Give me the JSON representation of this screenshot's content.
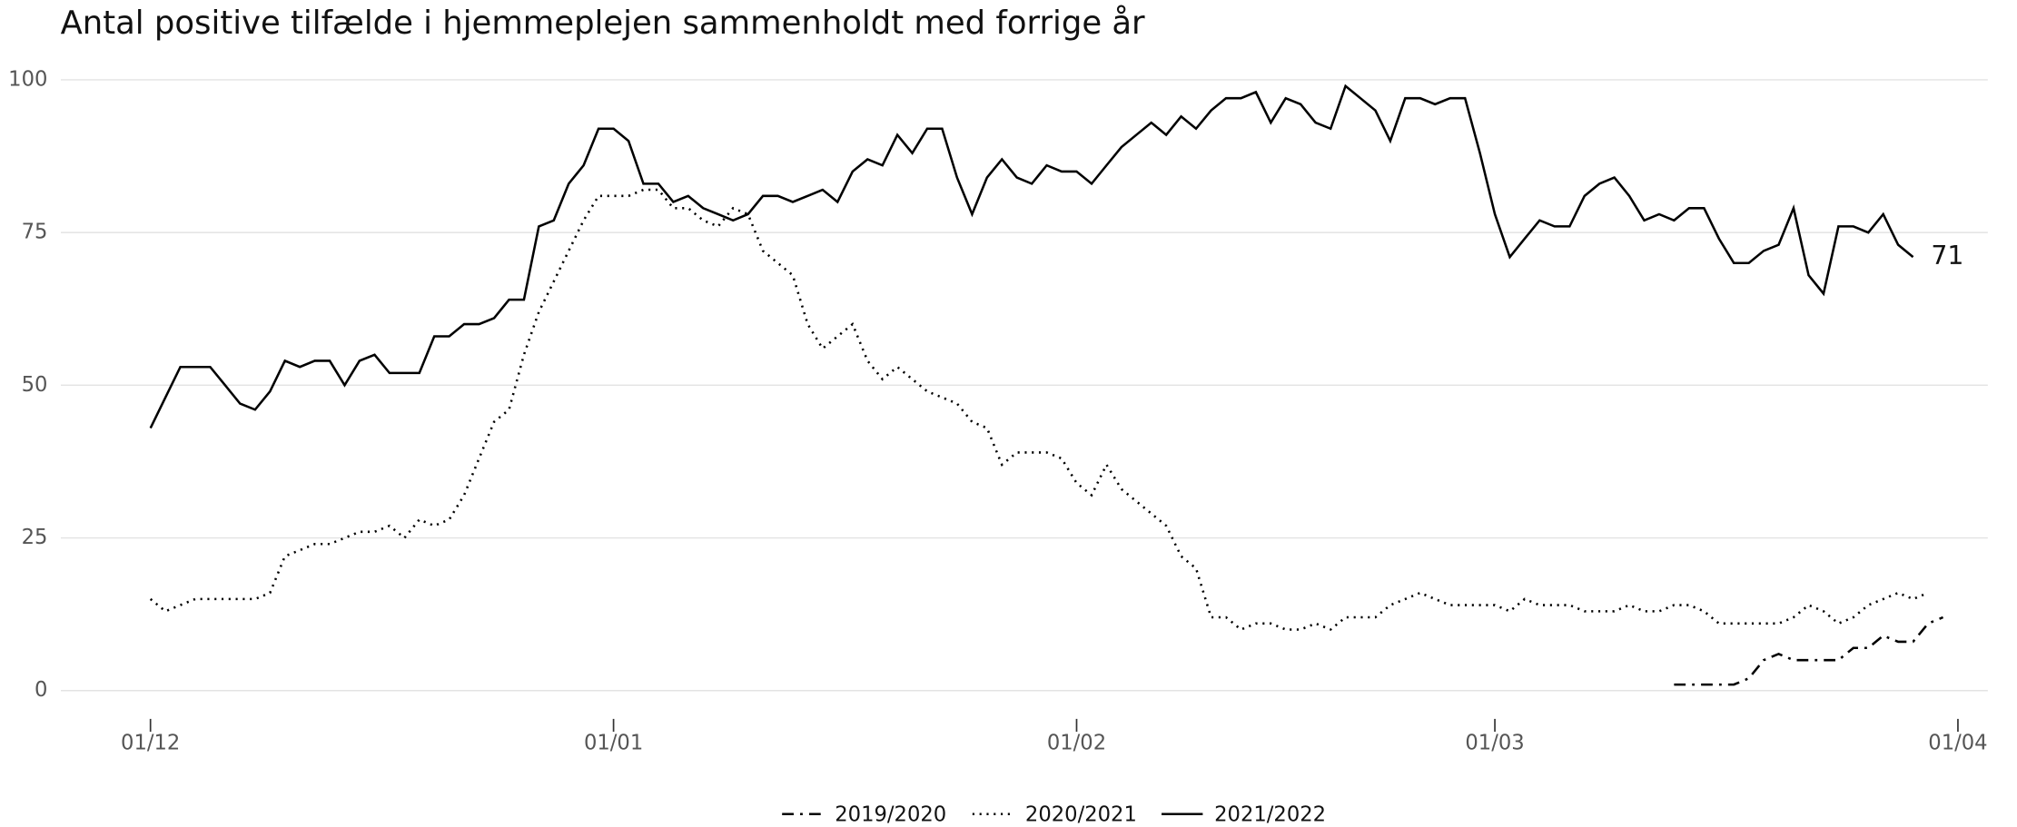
{
  "chart_data": {
    "type": "line",
    "title": "Antal positive tilfælde i hjemmeplejen sammenholdt med forrige år",
    "x": [
      0,
      1,
      2,
      3,
      4,
      5,
      6,
      7,
      8,
      9,
      10,
      11,
      12,
      13,
      14,
      15,
      16,
      17,
      18,
      19,
      20,
      21,
      22,
      23,
      24,
      25,
      26,
      27,
      28,
      29,
      30,
      31,
      32,
      33,
      34,
      35,
      36,
      37,
      38,
      39,
      40,
      41,
      42,
      43,
      44,
      45,
      46,
      47,
      48,
      49,
      50,
      51,
      52,
      53,
      54,
      55,
      56,
      57,
      58,
      59,
      60,
      61,
      62,
      63,
      64,
      65,
      66,
      67,
      68,
      69,
      70,
      71,
      72,
      73,
      74,
      75,
      76,
      77,
      78,
      79,
      80,
      81,
      82,
      83,
      84,
      85,
      86,
      87,
      88,
      89,
      90,
      91,
      92,
      93,
      94,
      95,
      96,
      97,
      98,
      99,
      100,
      101,
      102,
      103,
      104,
      105,
      106,
      107,
      108,
      109,
      110,
      111,
      112,
      113,
      114,
      115,
      116,
      117,
      118,
      119,
      120
    ],
    "xlim": [
      -6,
      123
    ],
    "xticks": [
      {
        "value": 0,
        "label": "01/12"
      },
      {
        "value": 31,
        "label": "01/01"
      },
      {
        "value": 62,
        "label": "01/02"
      },
      {
        "value": 90,
        "label": "01/03"
      },
      {
        "value": 121,
        "label": "01/04"
      }
    ],
    "ylim": [
      0,
      100
    ],
    "yticks": [
      0,
      25,
      50,
      75,
      100
    ],
    "grid": true,
    "legend": "bottom",
    "series": [
      {
        "name": "2019/2020",
        "color": "#000000",
        "dash": "dashdot",
        "values": [
          null,
          null,
          null,
          null,
          null,
          null,
          null,
          null,
          null,
          null,
          null,
          null,
          null,
          null,
          null,
          null,
          null,
          null,
          null,
          null,
          null,
          null,
          null,
          null,
          null,
          null,
          null,
          null,
          null,
          null,
          null,
          null,
          null,
          null,
          null,
          null,
          null,
          null,
          null,
          null,
          null,
          null,
          null,
          null,
          null,
          null,
          null,
          null,
          null,
          null,
          null,
          null,
          null,
          null,
          null,
          null,
          null,
          null,
          null,
          null,
          null,
          null,
          null,
          null,
          null,
          null,
          null,
          null,
          null,
          null,
          null,
          null,
          null,
          null,
          null,
          null,
          null,
          null,
          null,
          null,
          null,
          null,
          null,
          null,
          null,
          null,
          null,
          null,
          null,
          null,
          null,
          null,
          null,
          null,
          null,
          null,
          null,
          null,
          null,
          null,
          null,
          null,
          1,
          1,
          1,
          1,
          1,
          2,
          5,
          6,
          5,
          5,
          5,
          5,
          7,
          7,
          9,
          8,
          8,
          11,
          12
        ]
      },
      {
        "name": "2020/2021",
        "color": "#000000",
        "dash": "dotted",
        "values": [
          15,
          13,
          14,
          15,
          15,
          15,
          15,
          15,
          16,
          22,
          23,
          24,
          24,
          25,
          26,
          26,
          27,
          25,
          28,
          27,
          28,
          32,
          38,
          44,
          46,
          55,
          62,
          67,
          72,
          77,
          81,
          81,
          81,
          82,
          82,
          79,
          79,
          77,
          76,
          79,
          78,
          72,
          70,
          68,
          60,
          56,
          58,
          60,
          54,
          51,
          53,
          51,
          49,
          48,
          47,
          44,
          43,
          37,
          39,
          39,
          39,
          38,
          34,
          32,
          37,
          33,
          31,
          29,
          27,
          22,
          20,
          12,
          12,
          10,
          11,
          11,
          10,
          10,
          11,
          10,
          12,
          12,
          12,
          14,
          15,
          16,
          15,
          14,
          14,
          14,
          14,
          13,
          15,
          14,
          14,
          14,
          13,
          13,
          13,
          14,
          13,
          13,
          14,
          14,
          13,
          11,
          11,
          11,
          11,
          11,
          12,
          14,
          13,
          11,
          12,
          14,
          15,
          16,
          15,
          16,
          null
        ]
      },
      {
        "name": "2021/2022",
        "color": "#000000",
        "dash": "solid",
        "values": [
          43,
          48,
          53,
          53,
          53,
          50,
          47,
          46,
          49,
          54,
          53,
          54,
          54,
          50,
          54,
          55,
          52,
          52,
          52,
          58,
          58,
          60,
          60,
          61,
          64,
          64,
          76,
          77,
          83,
          86,
          92,
          92,
          90,
          83,
          83,
          80,
          81,
          79,
          78,
          77,
          78,
          81,
          81,
          80,
          81,
          82,
          80,
          85,
          87,
          86,
          91,
          88,
          92,
          92,
          84,
          78,
          84,
          87,
          84,
          83,
          86,
          85,
          85,
          83,
          86,
          89,
          91,
          93,
          91,
          94,
          92,
          95,
          97,
          97,
          98,
          93,
          97,
          96,
          93,
          92,
          99,
          97,
          95,
          90,
          97,
          97,
          96,
          97,
          97,
          88,
          78,
          71,
          74,
          77,
          76,
          76,
          81,
          83,
          84,
          81,
          77,
          78,
          77,
          79,
          79,
          74,
          70,
          70,
          72,
          73,
          79,
          68,
          65,
          76,
          76,
          75,
          78,
          73,
          71,
          null,
          null
        ]
      }
    ],
    "annotations": [
      {
        "label": "71",
        "x": 118,
        "y": 71
      }
    ]
  }
}
